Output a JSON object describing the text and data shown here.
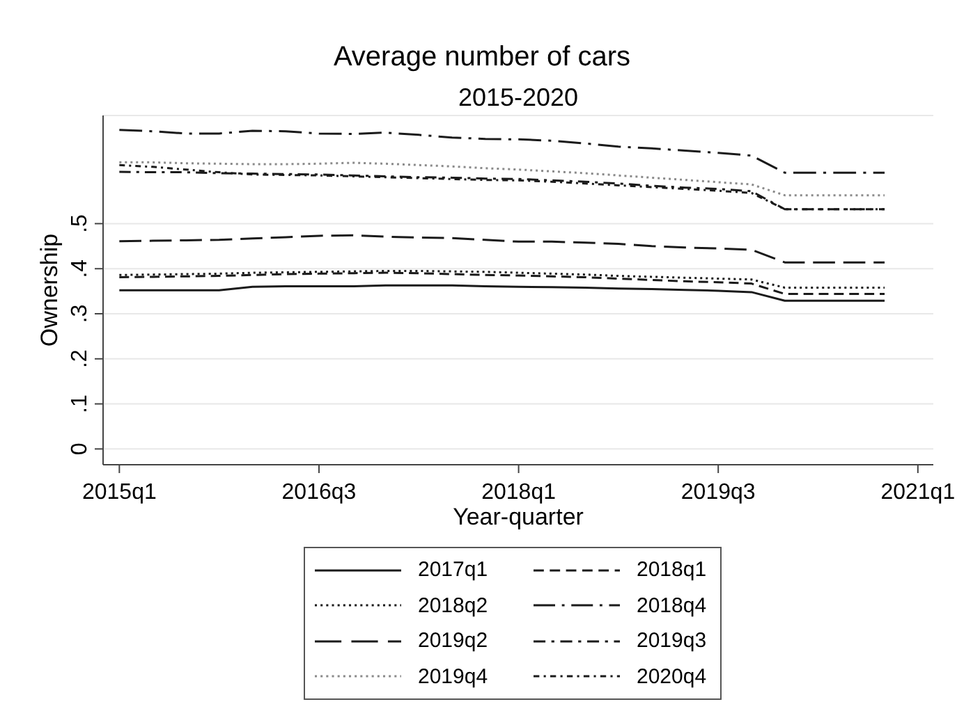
{
  "chart_data": {
    "type": "line",
    "title": "Average number of cars",
    "subtitle": "2015-2020",
    "xlabel": "Year-quarter",
    "ylabel": "Ownership",
    "x": [
      "2015-01",
      "2015-04",
      "2015-07",
      "2015-10",
      "2016-01",
      "2016-04",
      "2016-07",
      "2016-10",
      "2017-01",
      "2017-04",
      "2017-07",
      "2017-10",
      "2018-01",
      "2018-04",
      "2018-07",
      "2018-10",
      "2019-01",
      "2019-04",
      "2019-07",
      "2019-10",
      "2020-01",
      "2020-04",
      "2020-07",
      "2020-10"
    ],
    "xlim": [
      "2014-11-17",
      "2021-02-12"
    ],
    "xticks": [
      {
        "value": "2015-01",
        "label": "2015q1"
      },
      {
        "value": "2016-07",
        "label": "2016q3"
      },
      {
        "value": "2018-01",
        "label": "2018q1"
      },
      {
        "value": "2019-07",
        "label": "2019q3"
      },
      {
        "value": "2021-01",
        "label": "2021q1"
      }
    ],
    "ylim": [
      -0.035,
      0.74
    ],
    "yticks": [
      0,
      {
        "value": 0.1,
        "label": ".1"
      },
      {
        "value": 0.2,
        "label": ".2"
      },
      {
        "value": 0.3,
        "label": ".3"
      },
      {
        "value": 0.4,
        "label": ".4"
      },
      {
        "value": 0.5,
        "label": ".5"
      }
    ],
    "grid": "y",
    "legend": "bottom",
    "series": [
      {
        "name": "2017q1",
        "color": "#1a1a1a",
        "line_style": "solid",
        "values": [
          0.352,
          0.352,
          0.352,
          0.352,
          0.36,
          0.361,
          0.361,
          0.361,
          0.363,
          0.363,
          0.363,
          0.361,
          0.36,
          0.359,
          0.358,
          0.356,
          0.355,
          0.353,
          0.351,
          0.348,
          0.329,
          0.329,
          0.329,
          0.329
        ]
      },
      {
        "name": "2018q1",
        "color": "#1a1a1a",
        "line_style": "dashed",
        "values": [
          0.381,
          0.382,
          0.383,
          0.384,
          0.386,
          0.388,
          0.389,
          0.39,
          0.391,
          0.39,
          0.388,
          0.386,
          0.385,
          0.383,
          0.381,
          0.378,
          0.375,
          0.372,
          0.37,
          0.367,
          0.344,
          0.344,
          0.344,
          0.344
        ]
      },
      {
        "name": "2018q2",
        "color": "#1a1a1a",
        "line_style": "dotted",
        "values": [
          0.386,
          0.387,
          0.388,
          0.389,
          0.391,
          0.392,
          0.393,
          0.394,
          0.395,
          0.395,
          0.394,
          0.393,
          0.391,
          0.389,
          0.387,
          0.384,
          0.382,
          0.38,
          0.378,
          0.376,
          0.358,
          0.358,
          0.358,
          0.358
        ]
      },
      {
        "name": "2018q4",
        "color": "#1a1a1a",
        "line_style": "longdash_dot",
        "values": [
          0.708,
          0.705,
          0.7,
          0.7,
          0.706,
          0.705,
          0.7,
          0.699,
          0.702,
          0.697,
          0.691,
          0.688,
          0.687,
          0.684,
          0.678,
          0.671,
          0.667,
          0.662,
          0.657,
          0.651,
          0.613,
          0.613,
          0.613,
          0.613
        ]
      },
      {
        "name": "2019q2",
        "color": "#1a1a1a",
        "line_style": "longdash",
        "values": [
          0.461,
          0.462,
          0.463,
          0.464,
          0.467,
          0.47,
          0.473,
          0.474,
          0.471,
          0.469,
          0.468,
          0.464,
          0.46,
          0.46,
          0.458,
          0.455,
          0.45,
          0.447,
          0.445,
          0.442,
          0.414,
          0.414,
          0.414,
          0.414
        ]
      },
      {
        "name": "2019q3",
        "color": "#1a1a1a",
        "line_style": "dash_dot",
        "values": [
          0.615,
          0.614,
          0.614,
          0.612,
          0.611,
          0.61,
          0.609,
          0.607,
          0.605,
          0.603,
          0.602,
          0.6,
          0.599,
          0.596,
          0.593,
          0.589,
          0.584,
          0.58,
          0.577,
          0.572,
          0.532,
          0.532,
          0.532,
          0.532
        ]
      },
      {
        "name": "2019q4",
        "color": "#8a8a8a",
        "line_style": "dotted",
        "values": [
          0.636,
          0.636,
          0.634,
          0.633,
          0.632,
          0.632,
          0.633,
          0.635,
          0.633,
          0.63,
          0.627,
          0.623,
          0.62,
          0.616,
          0.612,
          0.607,
          0.602,
          0.597,
          0.592,
          0.587,
          0.563,
          0.563,
          0.563,
          0.563
        ]
      },
      {
        "name": "2020q4",
        "color": "#1a1a1a",
        "line_style": "shortdash_dot",
        "values": [
          0.63,
          0.626,
          0.62,
          0.614,
          0.609,
          0.608,
          0.607,
          0.605,
          0.603,
          0.601,
          0.599,
          0.597,
          0.596,
          0.593,
          0.589,
          0.585,
          0.581,
          0.577,
          0.573,
          0.568,
          0.532,
          0.532,
          0.532,
          0.532
        ]
      }
    ]
  }
}
